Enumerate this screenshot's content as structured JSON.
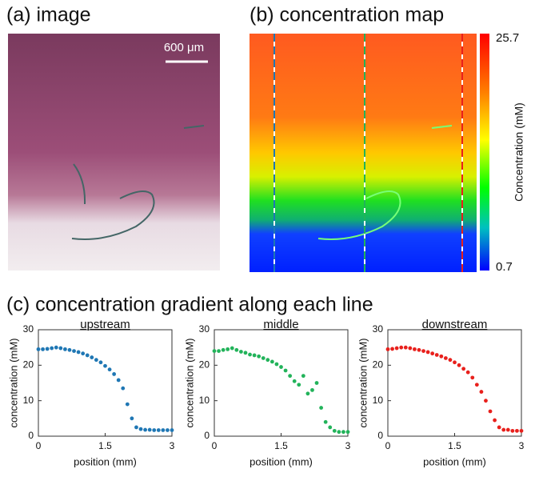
{
  "panel_a": {
    "title": "(a) image",
    "scale_label": "600 μm"
  },
  "panel_b": {
    "title": "(b) concentration map",
    "colorbar": {
      "max": 25.7,
      "min": 0.7,
      "label": "Concentration (mM)"
    }
  },
  "panel_c": {
    "title": "(c) concentration gradient along each line"
  },
  "chart_data": [
    {
      "type": "scatter",
      "title": "upstream",
      "xlabel": "position (mm)",
      "ylabel": "concentration (mM)",
      "color": "#1f77b4",
      "xlim": [
        0,
        3
      ],
      "xticks": [
        0,
        1.5,
        3
      ],
      "ylim": [
        0,
        30
      ],
      "yticks": [
        0,
        10,
        20,
        30
      ],
      "x": [
        0,
        0.1,
        0.2,
        0.3,
        0.4,
        0.5,
        0.6,
        0.7,
        0.8,
        0.9,
        1,
        1.1,
        1.2,
        1.3,
        1.4,
        1.5,
        1.6,
        1.7,
        1.8,
        1.9,
        2,
        2.1,
        2.2,
        2.3,
        2.4,
        2.5,
        2.6,
        2.7,
        2.8,
        2.9,
        3
      ],
      "values": [
        24.5,
        24.5,
        24.6,
        24.8,
        25,
        24.8,
        24.5,
        24.3,
        24,
        23.7,
        23.3,
        22.8,
        22.2,
        21.5,
        20.8,
        19.8,
        18.8,
        17.5,
        15.8,
        13.5,
        9,
        5,
        2.5,
        2,
        1.8,
        1.8,
        1.7,
        1.7,
        1.7,
        1.7,
        1.7
      ]
    },
    {
      "type": "scatter",
      "title": "middle",
      "xlabel": "position (mm)",
      "ylabel": "concentration (mM)",
      "color": "#22b35a",
      "xlim": [
        0,
        3
      ],
      "xticks": [
        0,
        1.5,
        3
      ],
      "ylim": [
        0,
        30
      ],
      "yticks": [
        0,
        10,
        20,
        30
      ],
      "x": [
        0,
        0.1,
        0.2,
        0.3,
        0.4,
        0.5,
        0.6,
        0.7,
        0.8,
        0.9,
        1,
        1.1,
        1.2,
        1.3,
        1.4,
        1.5,
        1.6,
        1.7,
        1.8,
        1.9,
        2,
        2.1,
        2.2,
        2.3,
        2.4,
        2.5,
        2.6,
        2.7,
        2.8,
        2.9,
        3
      ],
      "values": [
        24,
        24,
        24.3,
        24.5,
        24.8,
        24.3,
        23.8,
        23.5,
        23,
        22.8,
        22.5,
        22,
        21.5,
        21,
        20.3,
        19.5,
        18.5,
        17,
        15.5,
        14.5,
        17,
        12,
        13,
        15,
        8,
        4,
        2.5,
        1.5,
        1.2,
        1.2,
        1.2
      ]
    },
    {
      "type": "scatter",
      "title": "downstream",
      "xlabel": "position (mm)",
      "ylabel": "concentration (mM)",
      "color": "#e8201c",
      "xlim": [
        0,
        3
      ],
      "xticks": [
        0,
        1.5,
        3
      ],
      "ylim": [
        0,
        30
      ],
      "yticks": [
        0,
        10,
        20,
        30
      ],
      "x": [
        0,
        0.1,
        0.2,
        0.3,
        0.4,
        0.5,
        0.6,
        0.7,
        0.8,
        0.9,
        1,
        1.1,
        1.2,
        1.3,
        1.4,
        1.5,
        1.6,
        1.7,
        1.8,
        1.9,
        2,
        2.1,
        2.2,
        2.3,
        2.4,
        2.5,
        2.6,
        2.7,
        2.8,
        2.9,
        3
      ],
      "values": [
        24.5,
        24.6,
        24.8,
        25,
        25,
        24.8,
        24.5,
        24.3,
        24,
        23.7,
        23.3,
        22.9,
        22.5,
        22,
        21.5,
        20.8,
        20,
        19,
        18,
        16.5,
        14.5,
        12.5,
        10,
        7,
        4.5,
        2.5,
        1.8,
        1.8,
        1.5,
        1.5,
        1.5
      ]
    }
  ]
}
